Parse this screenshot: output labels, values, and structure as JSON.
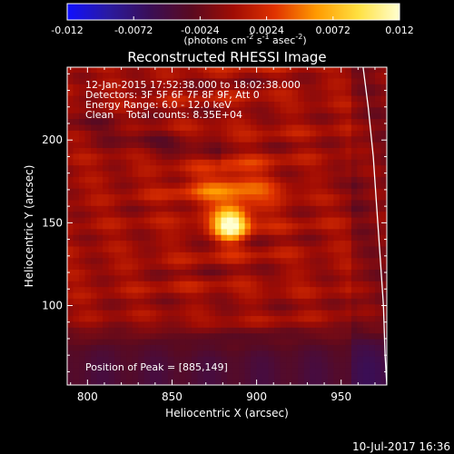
{
  "colorbar": {
    "ticks": [
      "-0.012",
      "-0.0072",
      "-0.0024",
      "0.0024",
      "0.0072",
      "0.012"
    ],
    "label_main": "(photons cm",
    "label_sup1": "-2",
    "label_mid": " s",
    "label_sup2": "-1",
    "label_end": " asec",
    "label_sup3": "-2",
    "label_close": ")",
    "colormap": [
      "#1010ff",
      "#2a1aa0",
      "#3a0e55",
      "#5a0a20",
      "#a00c04",
      "#e03200",
      "#ff9a00",
      "#ffe040",
      "#ffffd0"
    ]
  },
  "image_info": {
    "line1": "12-Jan-2015 17:52:38.000 to 18:02:38.000",
    "line2": "Detectors: 3F 5F 6F 7F 8F 9F, Att 0",
    "line3": "Energy Range: 6.0 - 12.0 keV",
    "line4": "Clean    Total counts: 8.35E+04",
    "peak": "Position of Peak = [885,149]"
  },
  "footer": {
    "timestamp": "10-Jul-2017 16:36"
  },
  "chart_data": {
    "type": "heatmap",
    "title": "Reconstructed RHESSI Image",
    "xlabel": "Heliocentric X (arcsec)",
    "ylabel": "Heliocentric Y (arcsec)",
    "xlim": [
      788,
      977
    ],
    "ylim": [
      52,
      244
    ],
    "xticks": [
      800,
      850,
      900,
      950
    ],
    "yticks": [
      100,
      150,
      200
    ],
    "xtick_labels": [
      "800",
      "850",
      "900",
      "950"
    ],
    "ytick_labels": [
      "100",
      "150",
      "200"
    ],
    "peak": {
      "x": 885,
      "y": 149
    },
    "zlim": [
      -0.012,
      0.012
    ],
    "limb_curve": [
      {
        "x": 963,
        "y": 244
      },
      {
        "x": 966,
        "y": 220
      },
      {
        "x": 969,
        "y": 190
      },
      {
        "x": 971,
        "y": 160
      },
      {
        "x": 973,
        "y": 130
      },
      {
        "x": 975,
        "y": 100
      },
      {
        "x": 976,
        "y": 70
      },
      {
        "x": 977,
        "y": 52
      }
    ]
  }
}
